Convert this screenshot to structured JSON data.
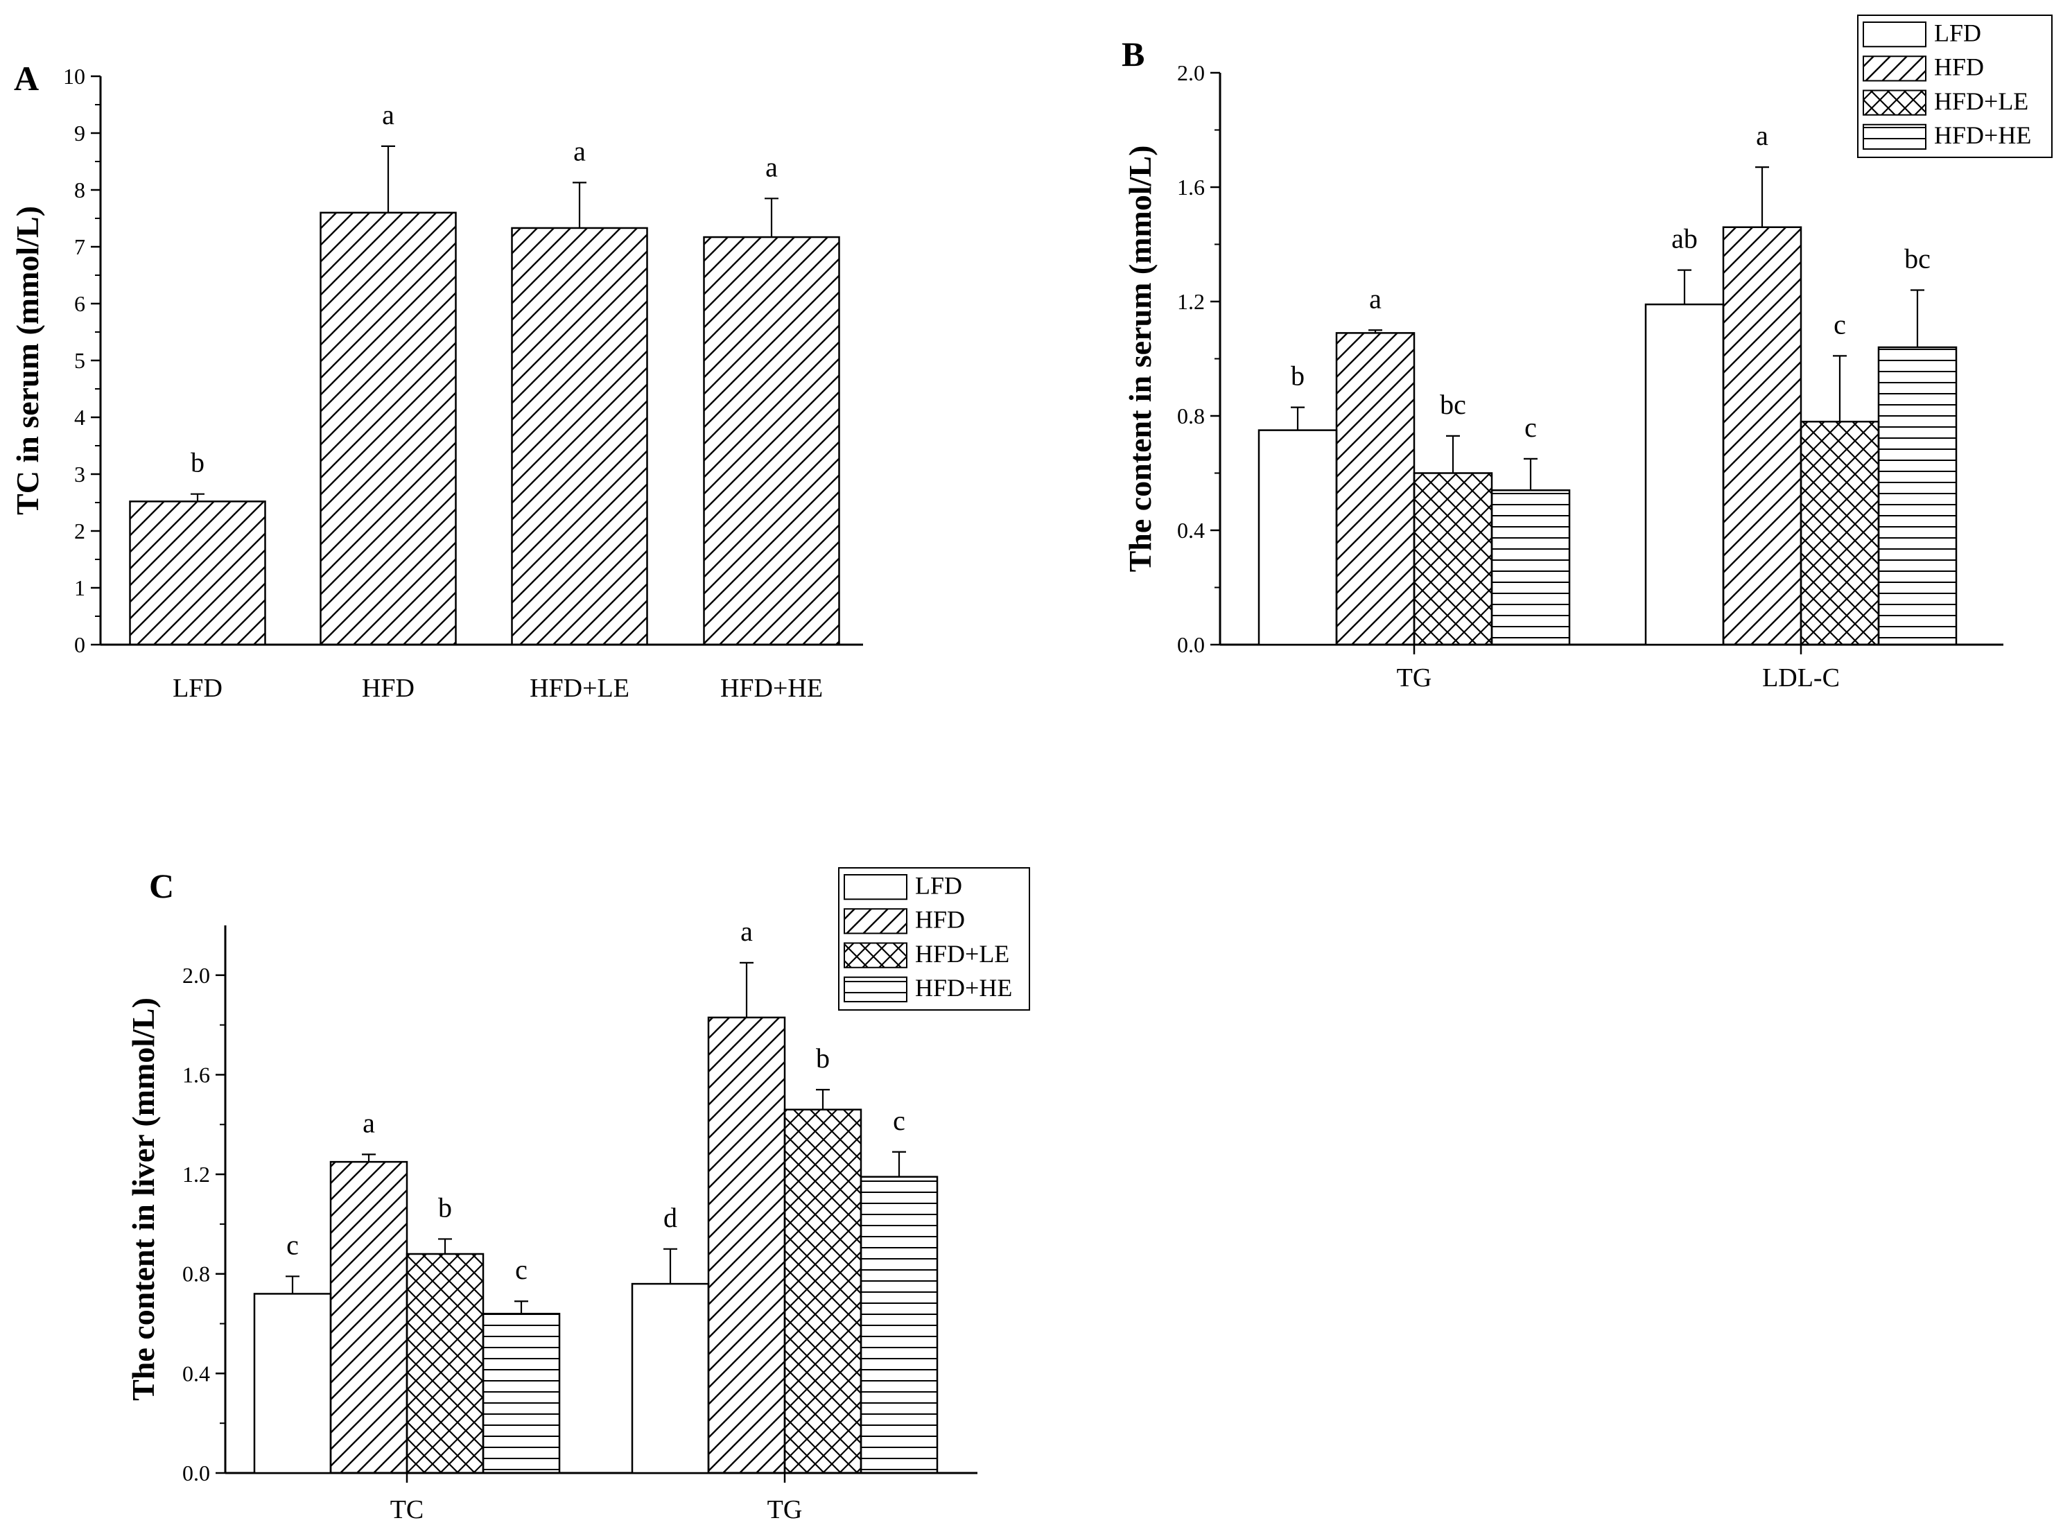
{
  "figure": {
    "groups": [
      "LFD",
      "HFD",
      "HFD+LE",
      "HFD+HE"
    ],
    "group_patterns": [
      "open",
      "diagonal",
      "crosshatch",
      "horizontal"
    ]
  },
  "chart_data": [
    {
      "panel": "A",
      "type": "bar",
      "title": "",
      "xlabel": "",
      "ylabel": "TC in serum (mmol/L)",
      "ylim": [
        0,
        10
      ],
      "yticks": [
        "0",
        "1",
        "2",
        "3",
        "4",
        "5",
        "6",
        "7",
        "8",
        "9",
        "10"
      ],
      "categories": [
        "LFD",
        "HFD",
        "HFD+LE",
        "HFD+HE"
      ],
      "values": [
        2.52,
        7.6,
        7.33,
        7.17
      ],
      "errors": [
        0.13,
        1.17,
        0.8,
        0.68
      ],
      "letters": [
        "b",
        "a",
        "a",
        "a"
      ],
      "pattern": "diagonal",
      "legend": "none"
    },
    {
      "panel": "B",
      "type": "bar",
      "title": "",
      "xlabel": "",
      "ylabel": "The content in serum (mmol/L)",
      "ylim": [
        0,
        2.0
      ],
      "yticks": [
        "0.0",
        "0.4",
        "0.8",
        "1.2",
        "1.6",
        "2.0"
      ],
      "categories": [
        "TG",
        "LDL-C"
      ],
      "series": [
        {
          "name": "LFD",
          "values": [
            0.75,
            1.19
          ],
          "errors": [
            0.08,
            0.12
          ],
          "letters": [
            "b",
            "ab"
          ]
        },
        {
          "name": "HFD",
          "values": [
            1.09,
            1.46
          ],
          "errors": [
            0.01,
            0.21
          ],
          "letters": [
            "a",
            "a"
          ]
        },
        {
          "name": "HFD+LE",
          "values": [
            0.6,
            0.78
          ],
          "errors": [
            0.13,
            0.23
          ],
          "letters": [
            "bc",
            "c"
          ]
        },
        {
          "name": "HFD+HE",
          "values": [
            0.54,
            1.04
          ],
          "errors": [
            0.11,
            0.2
          ],
          "letters": [
            "c",
            "bc"
          ]
        }
      ],
      "legend": "top-right"
    },
    {
      "panel": "C",
      "type": "bar",
      "title": "",
      "xlabel": "",
      "ylabel": "The content in liver (mmol/L)",
      "ylim": [
        0,
        2.2
      ],
      "yticks": [
        "0.0",
        "0.4",
        "0.8",
        "1.2",
        "1.6",
        "2.0"
      ],
      "categories": [
        "TC",
        "TG"
      ],
      "series": [
        {
          "name": "LFD",
          "values": [
            0.72,
            0.76
          ],
          "errors": [
            0.07,
            0.14
          ],
          "letters": [
            "c",
            "d"
          ]
        },
        {
          "name": "HFD",
          "values": [
            1.25,
            1.83
          ],
          "errors": [
            0.03,
            0.22
          ],
          "letters": [
            "a",
            "a"
          ]
        },
        {
          "name": "HFD+LE",
          "values": [
            0.88,
            1.46
          ],
          "errors": [
            0.06,
            0.08
          ],
          "letters": [
            "b",
            "b"
          ]
        },
        {
          "name": "HFD+HE",
          "values": [
            0.64,
            1.19
          ],
          "errors": [
            0.05,
            0.1
          ],
          "letters": [
            "c",
            "c"
          ]
        }
      ],
      "legend": "top-right"
    }
  ]
}
